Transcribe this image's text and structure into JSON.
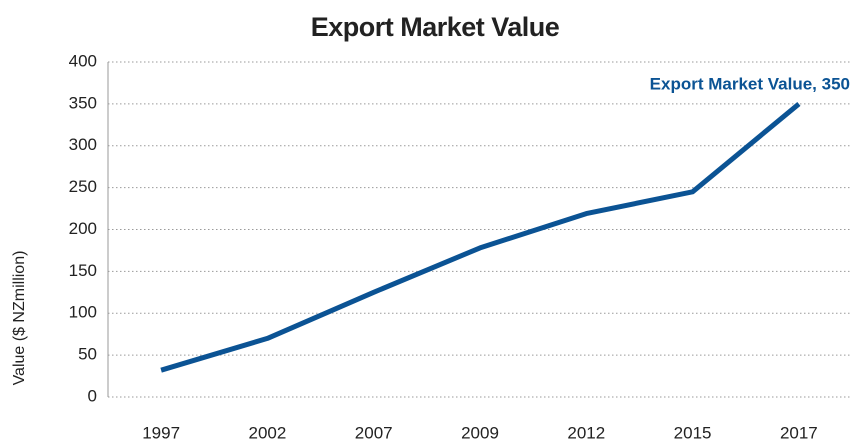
{
  "chart_data": {
    "type": "line",
    "title": "Export Market Value",
    "y_label": "Value ($ NZmillion)",
    "categories": [
      "1997",
      "2002",
      "2007",
      "2009",
      "2012",
      "2015",
      "2017"
    ],
    "values": [
      32,
      70,
      125,
      178,
      219,
      245,
      350
    ],
    "color": "#0b5394",
    "annotation": "Export Market Value, 350",
    "ylim": [
      0,
      400
    ],
    "yticks": [
      0,
      50,
      100,
      150,
      200,
      250,
      300,
      350,
      400
    ],
    "grid": true
  }
}
